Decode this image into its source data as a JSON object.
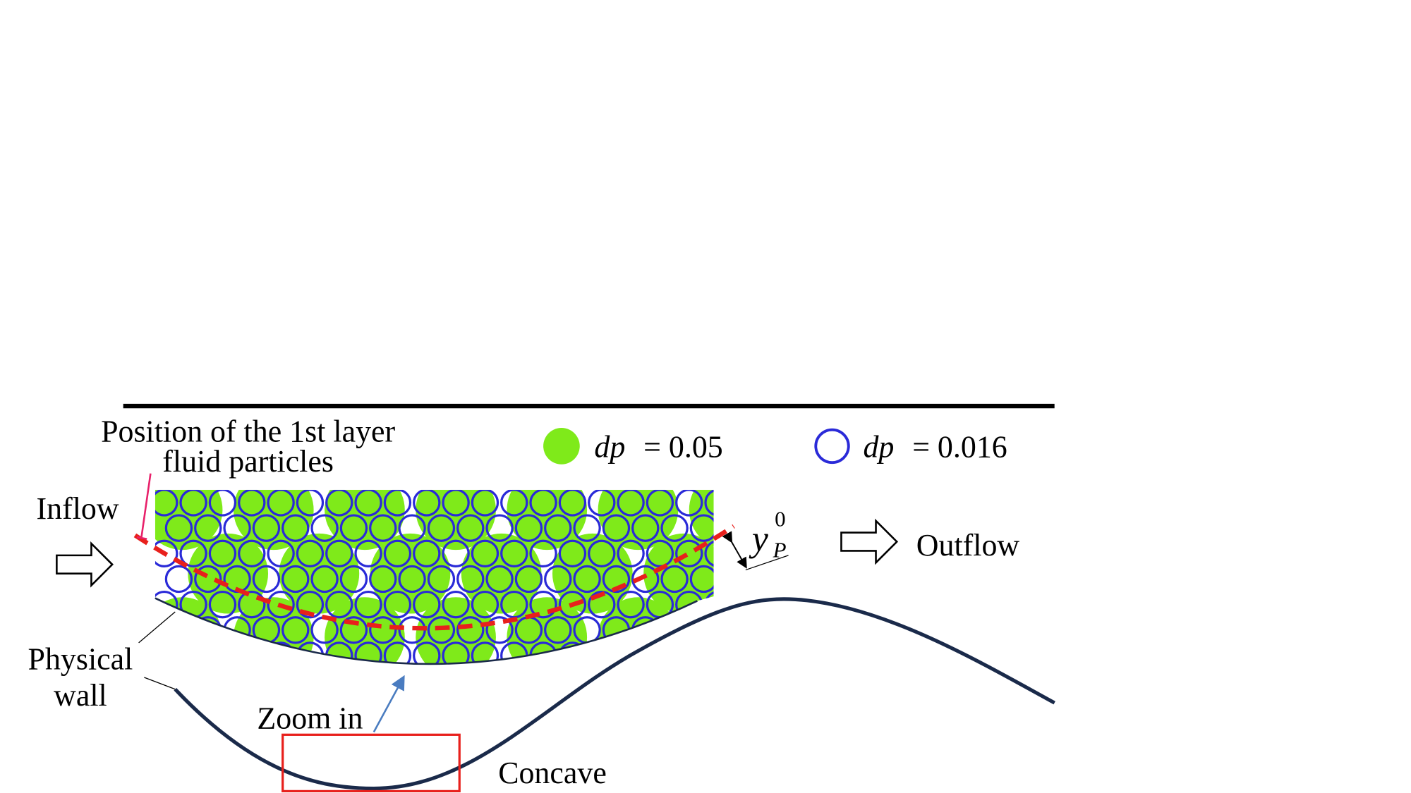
{
  "title_lines": [
    "Position of the 1st layer",
    "fluid particles"
  ],
  "legend": [
    {
      "symbol": "dp",
      "text": "= 0.05"
    },
    {
      "symbol": "dp",
      "text": "= 0.016"
    }
  ],
  "inflow": "Inflow",
  "outflow": "Outflow",
  "wall_lines": [
    "Physical",
    "wall"
  ],
  "zoom": "Zoom in",
  "concave": "Concave",
  "distance": {
    "symbol": "y",
    "subscript": "P",
    "superscript": "0"
  }
}
